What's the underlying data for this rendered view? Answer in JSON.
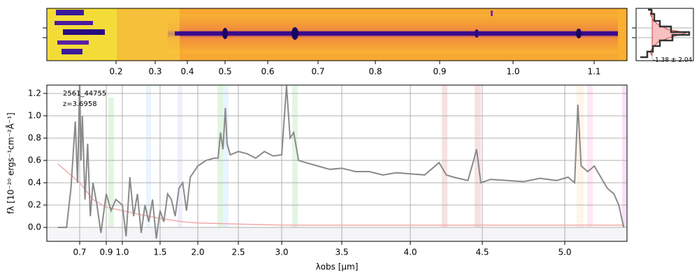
{
  "chart_data": [
    {
      "type": "image",
      "xticks": [
        0.2,
        0.3,
        0.4,
        0.5,
        0.6,
        0.7,
        0.8,
        0.9,
        {
          "value": 1,
          "label": "1.0"
        },
        1.1
      ]
    },
    {
      "type": "line",
      "annotations": [
        "2561_44755",
        "z=3.6958"
      ],
      "xlabel": "λobs [μm]",
      "ylabel": "fλ [10⁻²⁰ ergs⁻¹cm⁻²Å⁻¹]",
      "xlim": [
        0.55,
        5.38
      ],
      "ylim": [
        -0.125,
        1.275
      ],
      "xticks": [
        0.7,
        0.9,
        {
          "value": 1,
          "label": "1.0"
        },
        1.5,
        {
          "value": 2,
          "label": "2.0"
        },
        2.5,
        {
          "value": 3,
          "label": "3.0"
        },
        3.5,
        {
          "value": 4,
          "label": "4.0"
        },
        4.5,
        {
          "value": 5,
          "label": "5.0"
        }
      ],
      "yticks": [
        {
          "value": 0,
          "label": "0.0"
        },
        0.2,
        0.4,
        0.6,
        0.8,
        {
          "value": 1,
          "label": "1.0"
        },
        1.2
      ],
      "grid": true,
      "series": [
        {
          "color": "#f4a8a8",
          "x": [
            0.6,
            0.7,
            0.8,
            0.9,
            1.0,
            1.2,
            1.5,
            1.8,
            2.0,
            2.5,
            3.0,
            4.0,
            5.0,
            5.36
          ],
          "values": [
            0.57,
            0.4,
            0.25,
            0.18,
            0.15,
            0.12,
            0.08,
            0.05,
            0.04,
            0.03,
            0.02,
            0.02,
            0.02,
            0.02
          ]
        },
        {
          "color": "#8a8a8a",
          "x": [
            0.6,
            0.64,
            0.66,
            0.68,
            0.69,
            0.7,
            0.71,
            0.72,
            0.74,
            0.76,
            0.78,
            0.8,
            0.83,
            0.86,
            0.9,
            0.93,
            0.96,
            1.0,
            1.05,
            1.1,
            1.15,
            1.2,
            1.25,
            1.3,
            1.35,
            1.4,
            1.45,
            1.5,
            1.55,
            1.6,
            1.65,
            1.7,
            1.75,
            1.8,
            1.85,
            1.9,
            2.0,
            2.1,
            2.2,
            2.25,
            2.28,
            2.31,
            2.34,
            2.36,
            2.4,
            2.5,
            2.6,
            2.7,
            2.8,
            2.9,
            3.0,
            3.04,
            3.07,
            3.1,
            3.14,
            3.2,
            3.3,
            3.4,
            3.5,
            3.6,
            3.7,
            3.8,
            3.9,
            4.0,
            4.1,
            4.2,
            4.25,
            4.3,
            4.4,
            4.44,
            4.46,
            4.49,
            4.55,
            4.65,
            4.75,
            4.85,
            4.95,
            5.02,
            5.06,
            5.08,
            5.1,
            5.14,
            5.18,
            5.22,
            5.26,
            5.3,
            5.33,
            5.36
          ],
          "values": [
            0,
            0,
            0.35,
            0.95,
            0.4,
            1.3,
            0.6,
            1.0,
            0.25,
            0.75,
            0.1,
            0.4,
            0.2,
            -0.05,
            0.3,
            0.15,
            0.25,
            0.2,
            -0.08,
            0.45,
            0.1,
            0.3,
            -0.05,
            0.2,
            0.05,
            0.25,
            -0.1,
            0.15,
            0.05,
            0.3,
            0.25,
            0.1,
            0.35,
            0.4,
            0.15,
            0.45,
            0.55,
            0.6,
            0.62,
            0.62,
            0.85,
            0.7,
            1.07,
            0.75,
            0.65,
            0.68,
            0.66,
            0.62,
            0.68,
            0.64,
            0.65,
            1.27,
            0.8,
            0.85,
            0.6,
            0.58,
            0.55,
            0.52,
            0.53,
            0.5,
            0.5,
            0.47,
            0.49,
            0.48,
            0.47,
            0.58,
            0.47,
            0.45,
            0.42,
            0.6,
            0.7,
            0.4,
            0.43,
            0.42,
            0.41,
            0.44,
            0.42,
            0.45,
            0.4,
            1.1,
            0.55,
            0.5,
            0.55,
            0.45,
            0.35,
            0.3,
            0.2,
            0
          ]
        }
      ]
    },
    {
      "type": "histogram",
      "annotation": "-1.38 ± 2.04"
    }
  ]
}
